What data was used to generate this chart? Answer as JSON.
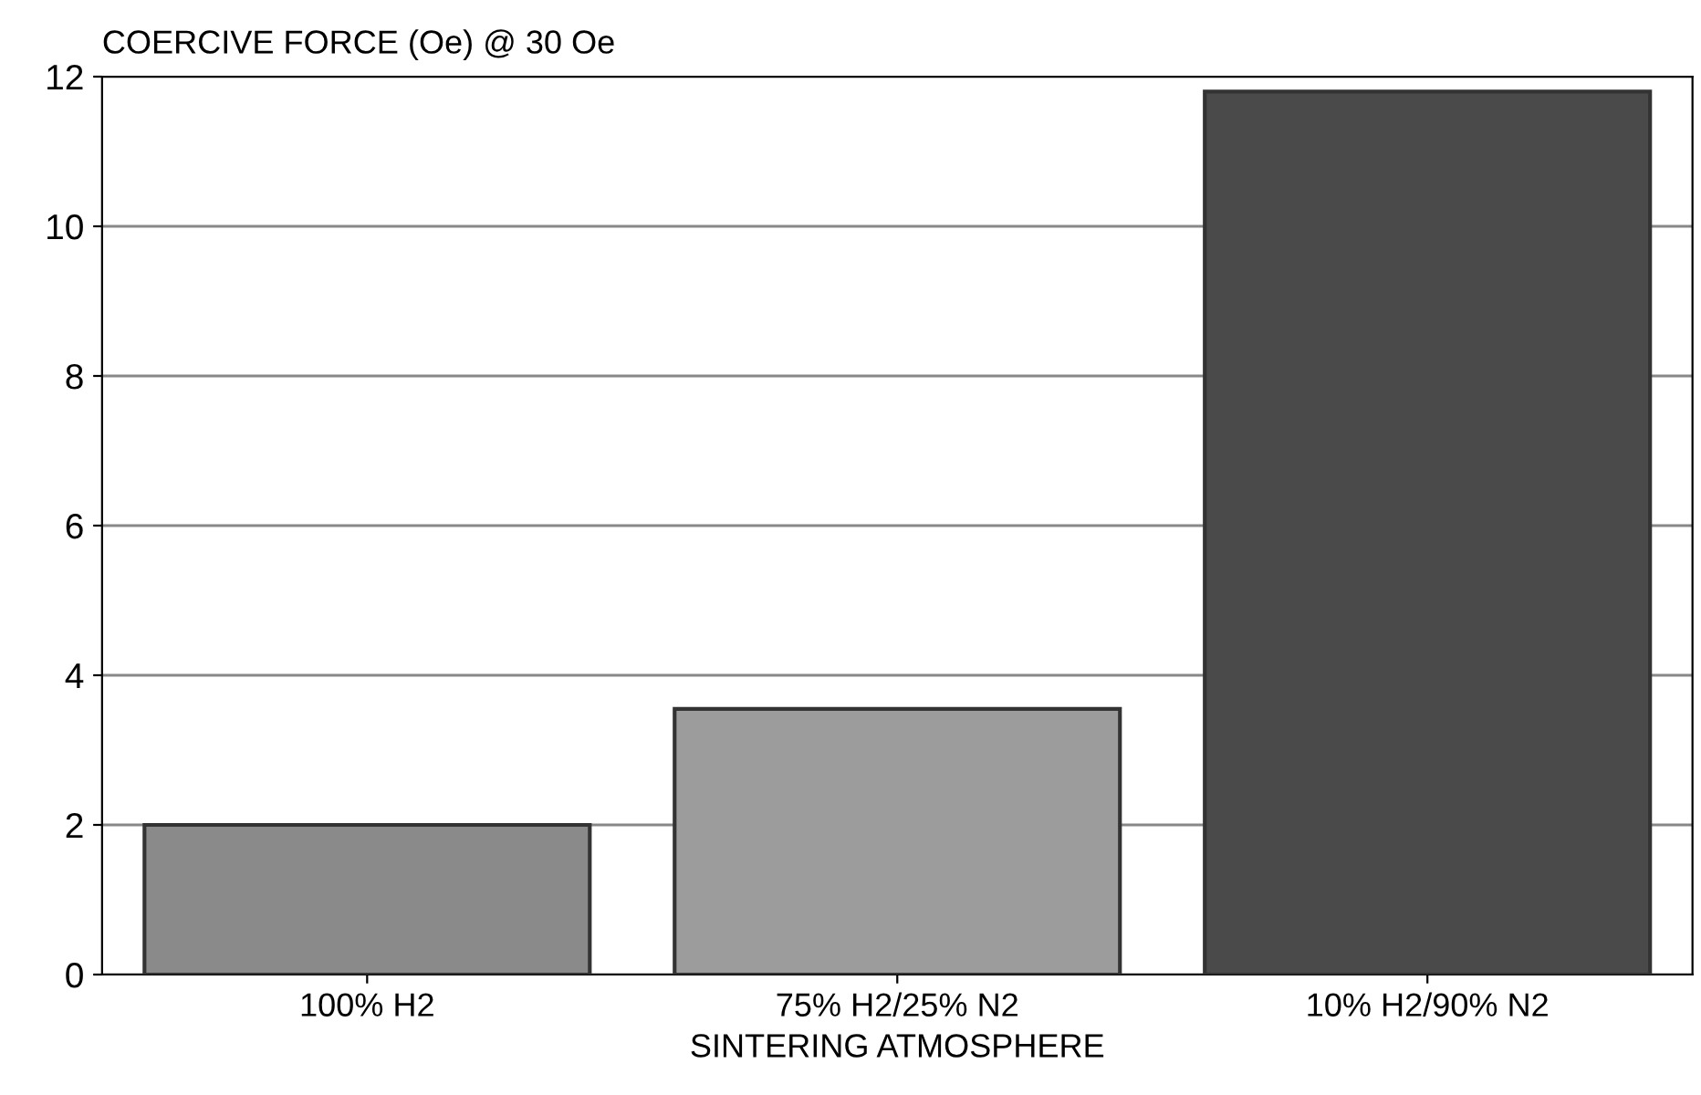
{
  "chart_data": {
    "type": "bar",
    "ylabel": "COERCIVE FORCE (Oe) @ 30 Oe",
    "xlabel": "SINTERING ATMOSPHERE",
    "categories": [
      "100% H2",
      "75% H2/25% N2",
      "10% H2/90% N2"
    ],
    "values": [
      2.0,
      3.55,
      11.8
    ],
    "colors": [
      "#8a8a8a",
      "#9c9c9c",
      "#4a4a4a"
    ],
    "ylim": [
      0,
      12
    ],
    "yticks": [
      0,
      2,
      4,
      6,
      8,
      10,
      12
    ],
    "grid": "y"
  }
}
